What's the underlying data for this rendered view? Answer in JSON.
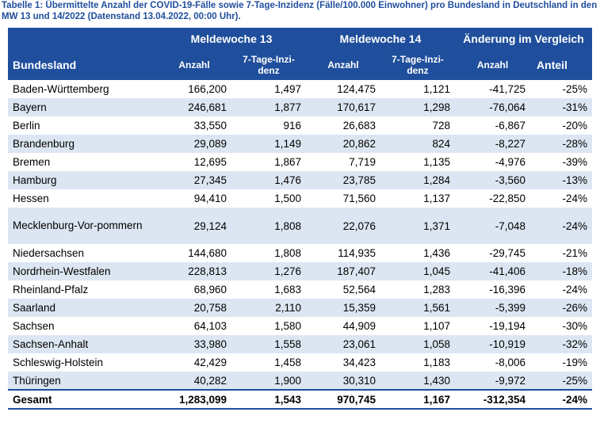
{
  "caption": "Tabelle 1: Übermittelte Anzahl der COVID-19-Fälle sowie 7-Tage-Inzidenz (Fälle/100.000 Einwohner) pro Bundesland in Deutschland in den MW 13 und 14/2022 (Datenstand 13.04.2022, 00:00 Uhr).",
  "header": {
    "group1": "Meldewoche 13",
    "group2": "Meldewoche 14",
    "group3": "Änderung im Vergleich",
    "land": "Bundesland",
    "anzahl": "Anzahl",
    "inzidenz_line1": "7-Tage-Inzi-",
    "inzidenz_line2": "denz",
    "anteil": "Anteil"
  },
  "rows": [
    {
      "name": "Baden-Württemberg",
      "a13": "166,200",
      "i13": "1,497",
      "a14": "124,475",
      "i14": "1,121",
      "diff": "-41,725",
      "pct": "-25%"
    },
    {
      "name": "Bayern",
      "a13": "246,681",
      "i13": "1,877",
      "a14": "170,617",
      "i14": "1,298",
      "diff": "-76,064",
      "pct": "-31%"
    },
    {
      "name": "Berlin",
      "a13": "33,550",
      "i13": "916",
      "a14": "26,683",
      "i14": "728",
      "diff": "-6,867",
      "pct": "-20%"
    },
    {
      "name": "Brandenburg",
      "a13": "29,089",
      "i13": "1,149",
      "a14": "20,862",
      "i14": "824",
      "diff": "-8,227",
      "pct": "-28%"
    },
    {
      "name": "Bremen",
      "a13": "12,695",
      "i13": "1,867",
      "a14": "7,719",
      "i14": "1,135",
      "diff": "-4,976",
      "pct": "-39%"
    },
    {
      "name": "Hamburg",
      "a13": "27,345",
      "i13": "1,476",
      "a14": "23,785",
      "i14": "1,284",
      "diff": "-3,560",
      "pct": "-13%"
    },
    {
      "name": "Hessen",
      "a13": "94,410",
      "i13": "1,500",
      "a14": "71,560",
      "i14": "1,137",
      "diff": "-22,850",
      "pct": "-24%"
    },
    {
      "name": "Mecklenburg-Vor-pommern",
      "a13": "29,124",
      "i13": "1,808",
      "a14": "22,076",
      "i14": "1,371",
      "diff": "-7,048",
      "pct": "-24%"
    },
    {
      "name": "Niedersachsen",
      "a13": "144,680",
      "i13": "1,808",
      "a14": "114,935",
      "i14": "1,436",
      "diff": "-29,745",
      "pct": "-21%"
    },
    {
      "name": "Nordrhein-Westfalen",
      "a13": "228,813",
      "i13": "1,276",
      "a14": "187,407",
      "i14": "1,045",
      "diff": "-41,406",
      "pct": "-18%"
    },
    {
      "name": "Rheinland-Pfalz",
      "a13": "68,960",
      "i13": "1,683",
      "a14": "52,564",
      "i14": "1,283",
      "diff": "-16,396",
      "pct": "-24%"
    },
    {
      "name": "Saarland",
      "a13": "20,758",
      "i13": "2,110",
      "a14": "15,359",
      "i14": "1,561",
      "diff": "-5,399",
      "pct": "-26%"
    },
    {
      "name": "Sachsen",
      "a13": "64,103",
      "i13": "1,580",
      "a14": "44,909",
      "i14": "1,107",
      "diff": "-19,194",
      "pct": "-30%"
    },
    {
      "name": "Sachsen-Anhalt",
      "a13": "33,980",
      "i13": "1,558",
      "a14": "23,061",
      "i14": "1,058",
      "diff": "-10,919",
      "pct": "-32%"
    },
    {
      "name": "Schleswig-Holstein",
      "a13": "42,429",
      "i13": "1,458",
      "a14": "34,423",
      "i14": "1,183",
      "diff": "-8,006",
      "pct": "-19%"
    },
    {
      "name": "Thüringen",
      "a13": "40,282",
      "i13": "1,900",
      "a14": "30,310",
      "i14": "1,430",
      "diff": "-9,972",
      "pct": "-25%"
    }
  ],
  "total": {
    "name": "Gesamt",
    "a13": "1,283,099",
    "i13": "1,543",
    "a14": "970,745",
    "i14": "1,167",
    "diff": "-312,354",
    "pct": "-24%"
  }
}
